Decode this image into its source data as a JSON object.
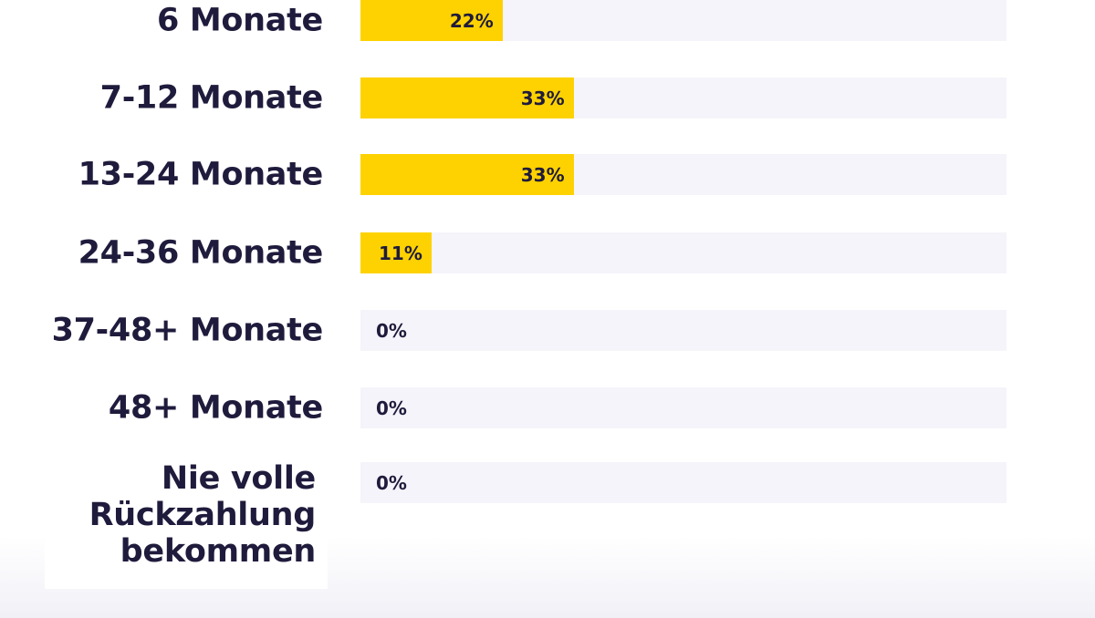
{
  "chart_data": {
    "type": "bar",
    "orientation": "horizontal",
    "categories": [
      "6 Monate",
      "7-12 Monate",
      "13-24 Monate",
      "24-36 Monate",
      "37-48+ Monate",
      "48+ Monate",
      "Nie volle\nRückzahlung\nbekommen"
    ],
    "values": [
      22,
      33,
      33,
      11,
      0,
      0,
      0
    ],
    "value_labels": [
      "22%",
      "33%",
      "33%",
      "11%",
      "0%",
      "0%",
      "0%"
    ],
    "xlim": [
      0,
      100
    ],
    "grid": false,
    "legend": "none",
    "colors": {
      "bar": "#fdd200",
      "track": "#f5f4fa",
      "text": "#1f1b3c"
    }
  }
}
